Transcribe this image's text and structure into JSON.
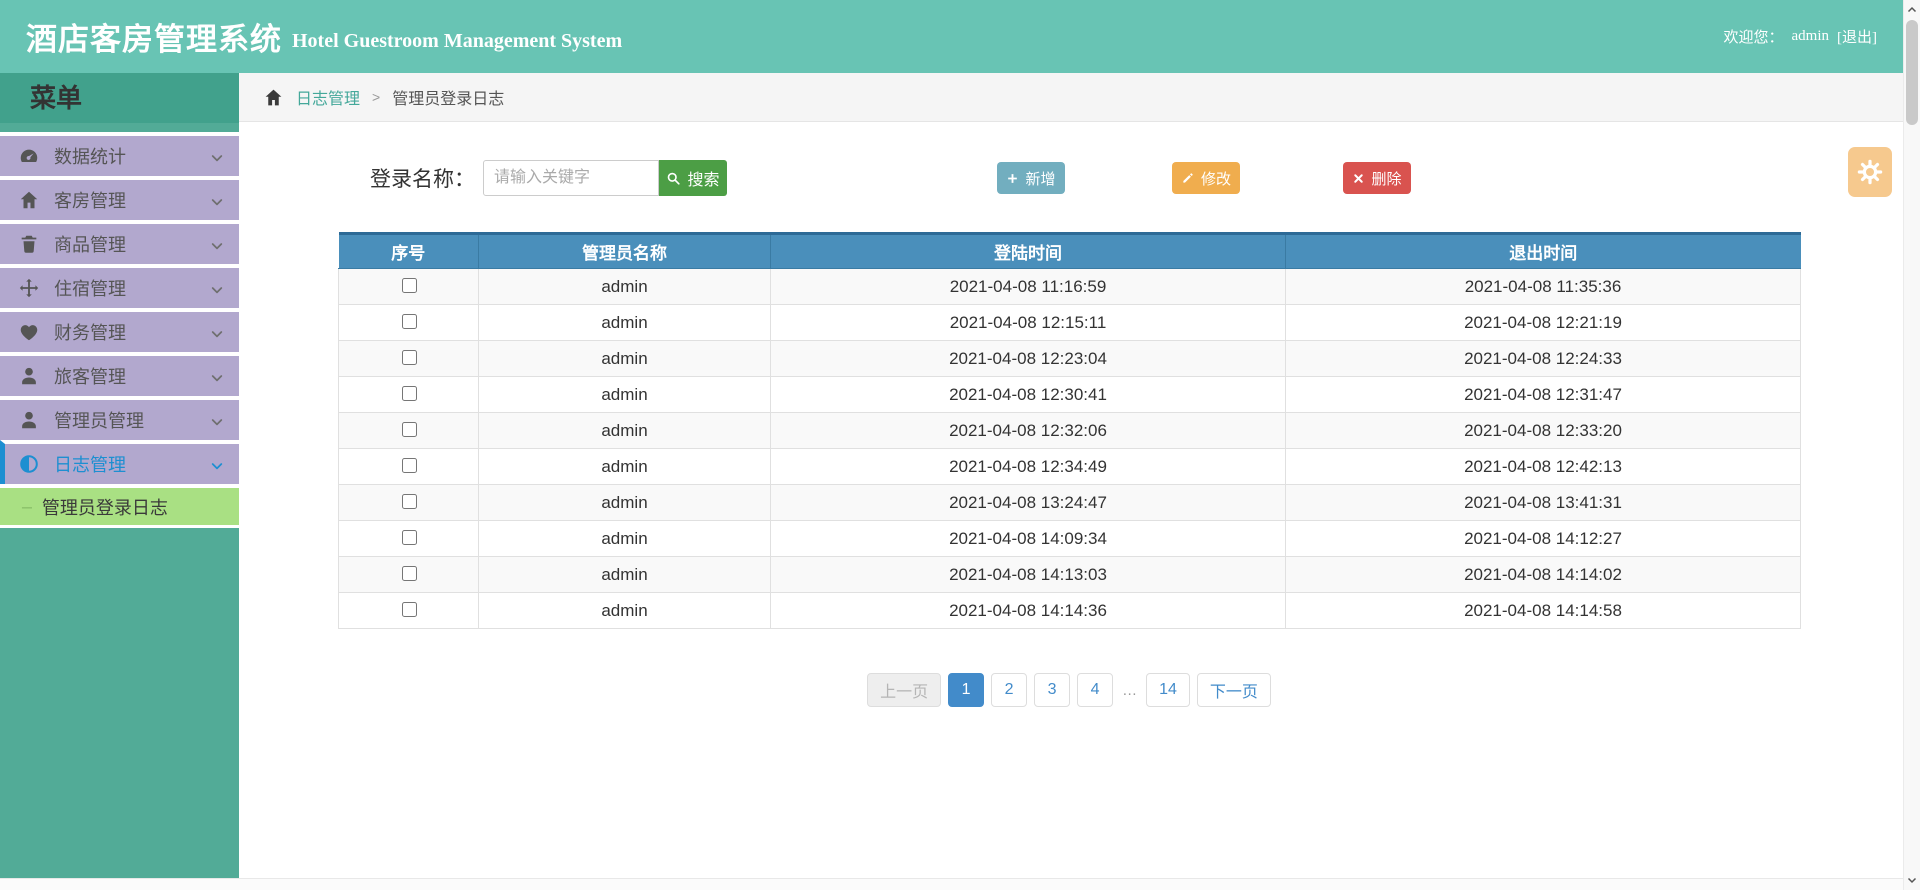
{
  "header": {
    "title_zh": "酒店客房管理系统",
    "title_en": "Hotel Guestroom Management System",
    "welcome_label": "欢迎您：",
    "username": "admin",
    "logout_label": "[退出]"
  },
  "sidebar": {
    "menu_title": "菜单",
    "items": [
      {
        "label": "数据统计",
        "icon": "tachometer-icon",
        "active": false
      },
      {
        "label": "客房管理",
        "icon": "home-icon",
        "active": false
      },
      {
        "label": "商品管理",
        "icon": "trash-icon",
        "active": false
      },
      {
        "label": "住宿管理",
        "icon": "move-icon",
        "active": false
      },
      {
        "label": "财务管理",
        "icon": "heart-icon",
        "active": false
      },
      {
        "label": "旅客管理",
        "icon": "user-icon",
        "active": false
      },
      {
        "label": "管理员管理",
        "icon": "user-icon",
        "active": false
      },
      {
        "label": "日志管理",
        "icon": "adjust-icon",
        "active": true,
        "expanded": true
      }
    ],
    "submenu": [
      {
        "label": "管理员登录日志",
        "active": true
      }
    ]
  },
  "breadcrumb": {
    "section": "日志管理",
    "separator": ">",
    "current": "管理员登录日志"
  },
  "search": {
    "label": "登录名称：",
    "placeholder": "请输入关键字",
    "value": "",
    "button_label": "搜索"
  },
  "toolbar": {
    "add_label": "新增",
    "edit_label": "修改",
    "delete_label": "删除"
  },
  "table": {
    "headers": [
      "序号",
      "管理员名称",
      "登陆时间",
      "退出时间"
    ],
    "rows": [
      {
        "name": "admin",
        "login_time": "2021-04-08 11:16:59",
        "logout_time": "2021-04-08 11:35:36"
      },
      {
        "name": "admin",
        "login_time": "2021-04-08 12:15:11",
        "logout_time": "2021-04-08 12:21:19"
      },
      {
        "name": "admin",
        "login_time": "2021-04-08 12:23:04",
        "logout_time": "2021-04-08 12:24:33"
      },
      {
        "name": "admin",
        "login_time": "2021-04-08 12:30:41",
        "logout_time": "2021-04-08 12:31:47"
      },
      {
        "name": "admin",
        "login_time": "2021-04-08 12:32:06",
        "logout_time": "2021-04-08 12:33:20"
      },
      {
        "name": "admin",
        "login_time": "2021-04-08 12:34:49",
        "logout_time": "2021-04-08 12:42:13"
      },
      {
        "name": "admin",
        "login_time": "2021-04-08 13:24:47",
        "logout_time": "2021-04-08 13:41:31"
      },
      {
        "name": "admin",
        "login_time": "2021-04-08 14:09:34",
        "logout_time": "2021-04-08 14:12:27"
      },
      {
        "name": "admin",
        "login_time": "2021-04-08 14:13:03",
        "logout_time": "2021-04-08 14:14:02"
      },
      {
        "name": "admin",
        "login_time": "2021-04-08 14:14:36",
        "logout_time": "2021-04-08 14:14:58"
      }
    ]
  },
  "pagination": {
    "prev_label": "上一页",
    "next_label": "下一页",
    "pages": [
      "1",
      "2",
      "3",
      "4",
      "…",
      "14"
    ],
    "active_page": "1",
    "prev_disabled": true
  },
  "colors": {
    "header_bg": "#68c4b4",
    "sidebar_bg": "#52ab97",
    "menu_title_bg": "#41a18c",
    "menu_item_bg": "#b2a8ce",
    "active_blue": "#1d8fd1",
    "submenu_bg": "#a9e083",
    "table_header_bg": "#4a8fbb",
    "btn_add": "#72aebf",
    "btn_edit": "#f0ad4e",
    "btn_delete": "#d9534f",
    "btn_search": "#4c9e45",
    "gear_bg": "#f6c98e",
    "pagination_active": "#428bca",
    "breadcrumb_link": "#44a89a"
  }
}
